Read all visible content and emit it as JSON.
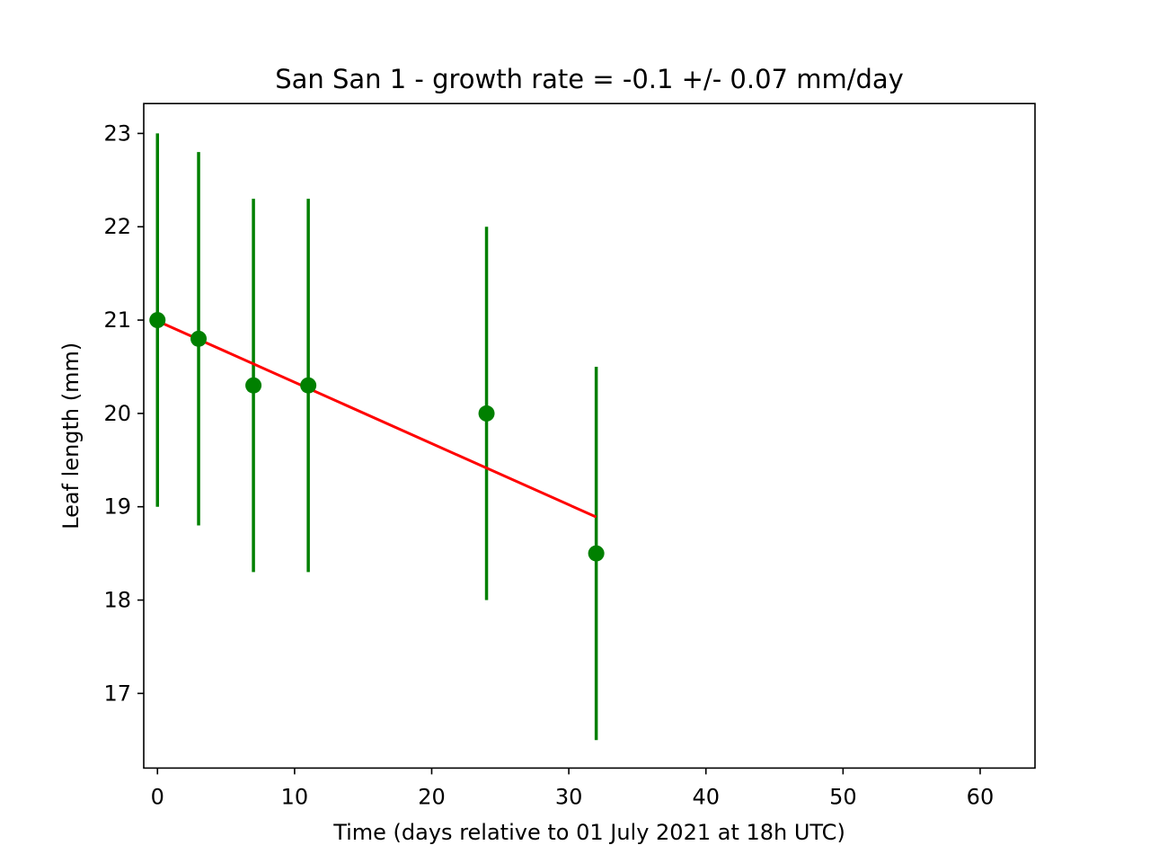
{
  "chart_data": {
    "type": "scatter",
    "title": "San San 1  -  growth rate = -0.1 +/- 0.07 mm/day",
    "xlabel": "Time (days relative to 01 July 2021 at 18h UTC)",
    "ylabel": "Leaf length (mm)",
    "xlim": [
      -1,
      64
    ],
    "ylim": [
      16.2,
      23.32
    ],
    "xticks": [
      0,
      10,
      20,
      30,
      40,
      50,
      60
    ],
    "yticks": [
      17,
      18,
      19,
      20,
      21,
      22,
      23
    ],
    "grid": false,
    "legend": null,
    "series": [
      {
        "kind": "errorbar",
        "color": "#008000",
        "x": [
          0,
          3,
          7,
          11,
          24,
          32
        ],
        "y": [
          21.0,
          20.8,
          20.3,
          20.3,
          20.0,
          18.5
        ],
        "yerr": [
          2.0,
          2.0,
          2.0,
          2.0,
          2.0,
          2.0
        ]
      },
      {
        "kind": "line",
        "color": "#ff0000",
        "x": [
          0,
          32
        ],
        "y": [
          20.99,
          18.89
        ]
      }
    ]
  }
}
